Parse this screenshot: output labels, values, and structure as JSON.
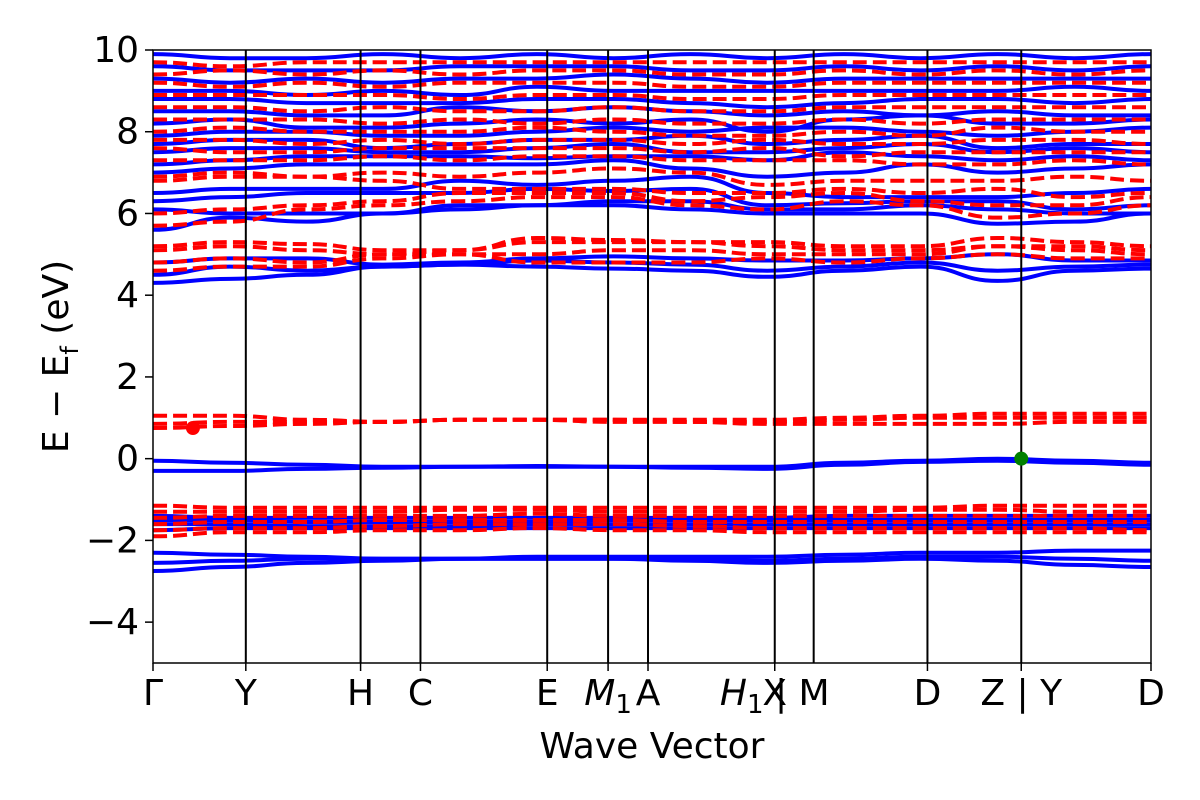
{
  "chart_data": {
    "type": "line",
    "title": "",
    "xlabel": "Wave Vector",
    "ylabel": "E − E",
    "ylabel_subscript": "f",
    "ylabel_unit": " (eV)",
    "ylim": [
      -5,
      10
    ],
    "yticks": [
      -4,
      -2,
      0,
      2,
      4,
      6,
      8,
      10
    ],
    "ytick_labels": [
      "−4",
      "−2",
      "0",
      "2",
      "4",
      "6",
      "8",
      "10"
    ],
    "xlim": [
      0,
      100
    ],
    "grid": false,
    "legend": "none",
    "kpoints": [
      {
        "label": "Γ",
        "x": 0
      },
      {
        "label": "Y",
        "x": 9.3
      },
      {
        "label": "H",
        "x": 20.8
      },
      {
        "label": "C",
        "x": 26.8
      },
      {
        "label": "E",
        "x": 39.5
      },
      {
        "label": "M",
        "sub": "1",
        "x": 45.6,
        "italic": true
      },
      {
        "label": "A",
        "x": 49.6
      },
      {
        "label": "X",
        "x": 62.3
      },
      {
        "label": "H",
        "sub": "1",
        "x": 62.3,
        "italic": true,
        "suffix": " | M"
      },
      {
        "label": "D",
        "x": 77.6
      },
      {
        "label": "Z | Y",
        "x": 87.0
      },
      {
        "label": "D",
        "x": 100
      }
    ],
    "path_breaks": [
      66.2,
      87.0
    ],
    "series": [
      {
        "kind": "spin-up",
        "color": "#0000ff",
        "style": "solid",
        "bands": [
          [
            -2.75,
            -2.65,
            -2.55,
            -2.5,
            -2.45,
            -2.45,
            -2.45,
            -2.5,
            -2.55,
            -2.5,
            -2.45,
            -2.5,
            -2.6,
            -2.65
          ],
          [
            -2.55,
            -2.5,
            -2.45,
            -2.45,
            -2.45,
            -2.45,
            -2.45,
            -2.45,
            -2.5,
            -2.45,
            -2.4,
            -2.4,
            -2.45,
            -2.5
          ],
          [
            -2.3,
            -2.35,
            -2.4,
            -2.45,
            -2.45,
            -2.4,
            -2.4,
            -2.4,
            -2.4,
            -2.35,
            -2.3,
            -2.3,
            -2.25,
            -2.25
          ],
          [
            -1.75,
            -1.7,
            -1.7,
            -1.7,
            -1.7,
            -1.7,
            -1.7,
            -1.7,
            -1.7,
            -1.7,
            -1.7,
            -1.7,
            -1.7,
            -1.7
          ],
          [
            -1.6,
            -1.6,
            -1.65,
            -1.65,
            -1.65,
            -1.6,
            -1.6,
            -1.6,
            -1.6,
            -1.6,
            -1.6,
            -1.6,
            -1.6,
            -1.6
          ],
          [
            -1.5,
            -1.5,
            -1.55,
            -1.55,
            -1.55,
            -1.55,
            -1.5,
            -1.5,
            -1.5,
            -1.5,
            -1.5,
            -1.5,
            -1.5,
            -1.5
          ],
          [
            -1.4,
            -1.45,
            -1.45,
            -1.45,
            -1.45,
            -1.45,
            -1.45,
            -1.45,
            -1.45,
            -1.4,
            -1.4,
            -1.4,
            -1.4,
            -1.4
          ],
          [
            -0.3,
            -0.3,
            -0.25,
            -0.22,
            -0.2,
            -0.2,
            -0.2,
            -0.22,
            -0.25,
            -0.15,
            -0.08,
            -0.05,
            -0.1,
            -0.15
          ],
          [
            -0.05,
            -0.1,
            -0.15,
            -0.2,
            -0.2,
            -0.18,
            -0.2,
            -0.2,
            -0.2,
            -0.1,
            -0.05,
            0.0,
            -0.05,
            -0.1
          ],
          [
            4.3,
            4.4,
            4.5,
            4.7,
            4.75,
            4.7,
            4.65,
            4.6,
            4.45,
            4.6,
            4.7,
            4.35,
            4.6,
            4.65
          ],
          [
            4.5,
            4.7,
            4.6,
            4.7,
            4.75,
            4.85,
            4.8,
            4.75,
            4.6,
            4.7,
            4.8,
            4.6,
            4.7,
            4.75
          ],
          [
            4.8,
            4.9,
            4.9,
            4.75,
            4.8,
            4.9,
            4.95,
            4.9,
            4.85,
            4.85,
            4.9,
            5.0,
            4.85,
            4.85
          ],
          [
            5.6,
            5.9,
            5.8,
            6.0,
            6.1,
            6.2,
            6.2,
            6.1,
            6.0,
            6.0,
            6.0,
            5.75,
            5.8,
            6.0
          ],
          [
            6.1,
            6.0,
            6.0,
            6.0,
            6.2,
            6.2,
            6.3,
            6.3,
            6.1,
            6.1,
            6.2,
            6.1,
            6.0,
            6.0
          ],
          [
            6.3,
            6.4,
            6.5,
            6.5,
            6.5,
            6.6,
            6.55,
            6.6,
            6.2,
            6.25,
            6.3,
            6.3,
            6.1,
            6.2
          ],
          [
            6.5,
            6.6,
            6.6,
            6.6,
            6.8,
            6.7,
            6.8,
            6.9,
            6.5,
            6.4,
            6.4,
            6.4,
            6.5,
            6.6
          ],
          [
            7.0,
            7.1,
            7.2,
            7.2,
            7.2,
            7.2,
            7.3,
            7.1,
            6.9,
            7.0,
            7.2,
            7.0,
            7.1,
            7.2
          ],
          [
            7.2,
            7.3,
            7.4,
            7.4,
            7.4,
            7.35,
            7.4,
            7.4,
            7.3,
            7.5,
            7.4,
            7.3,
            7.4,
            7.3
          ],
          [
            7.5,
            7.6,
            7.6,
            7.5,
            7.5,
            7.6,
            7.7,
            7.5,
            7.5,
            7.6,
            7.7,
            7.5,
            7.6,
            7.5
          ],
          [
            7.7,
            7.8,
            7.8,
            7.6,
            7.7,
            7.8,
            7.8,
            7.9,
            7.7,
            7.8,
            7.9,
            7.6,
            7.7,
            7.7
          ],
          [
            7.9,
            8.0,
            8.0,
            7.9,
            7.9,
            8.0,
            8.1,
            8.0,
            8.1,
            8.1,
            8.0,
            7.9,
            8.0,
            8.1
          ],
          [
            8.2,
            8.3,
            8.1,
            8.1,
            8.2,
            8.3,
            8.2,
            8.3,
            8.0,
            8.3,
            8.4,
            8.2,
            8.2,
            8.3
          ],
          [
            8.5,
            8.5,
            8.4,
            8.4,
            8.6,
            8.5,
            8.6,
            8.5,
            8.4,
            8.5,
            8.4,
            8.5,
            8.4,
            8.4
          ],
          [
            8.8,
            8.8,
            8.7,
            8.7,
            8.7,
            8.8,
            8.8,
            8.7,
            8.6,
            8.7,
            8.8,
            8.8,
            8.7,
            8.8
          ],
          [
            9.0,
            9.0,
            8.9,
            9.0,
            8.9,
            9.1,
            9.0,
            9.0,
            9.0,
            9.0,
            9.0,
            9.0,
            9.1,
            9.0
          ],
          [
            9.3,
            9.2,
            9.3,
            9.2,
            9.3,
            9.3,
            9.4,
            9.3,
            9.2,
            9.3,
            9.3,
            9.3,
            9.3,
            9.3
          ],
          [
            9.6,
            9.5,
            9.5,
            9.5,
            9.6,
            9.6,
            9.6,
            9.5,
            9.5,
            9.6,
            9.5,
            9.6,
            9.5,
            9.6
          ],
          [
            9.9,
            9.8,
            9.8,
            9.9,
            9.8,
            9.9,
            9.8,
            9.9,
            9.8,
            9.9,
            9.8,
            9.9,
            9.8,
            9.9
          ]
        ]
      },
      {
        "kind": "spin-down",
        "color": "#ff0000",
        "style": "dashed",
        "bands": [
          [
            -1.9,
            -1.8,
            -1.8,
            -1.75,
            -1.75,
            -1.7,
            -1.75,
            -1.75,
            -1.8,
            -1.8,
            -1.8,
            -1.8,
            -1.8,
            -1.8
          ],
          [
            -1.75,
            -1.7,
            -1.7,
            -1.65,
            -1.6,
            -1.6,
            -1.6,
            -1.65,
            -1.7,
            -1.7,
            -1.7,
            -1.7,
            -1.7,
            -1.75
          ],
          [
            -1.6,
            -1.55,
            -1.55,
            -1.5,
            -1.5,
            -1.5,
            -1.5,
            -1.55,
            -1.55,
            -1.55,
            -1.55,
            -1.55,
            -1.55,
            -1.55
          ],
          [
            -1.45,
            -1.4,
            -1.4,
            -1.4,
            -1.4,
            -1.35,
            -1.4,
            -1.4,
            -1.4,
            -1.4,
            -1.4,
            -1.4,
            -1.4,
            -1.4
          ],
          [
            -1.3,
            -1.3,
            -1.3,
            -1.3,
            -1.25,
            -1.25,
            -1.3,
            -1.3,
            -1.3,
            -1.3,
            -1.25,
            -1.25,
            -1.3,
            -1.3
          ],
          [
            -1.15,
            -1.2,
            -1.2,
            -1.2,
            -1.2,
            -1.2,
            -1.2,
            -1.2,
            -1.2,
            -1.2,
            -1.2,
            -1.15,
            -1.15,
            -1.15
          ],
          [
            0.75,
            0.8,
            0.85,
            0.9,
            0.95,
            0.95,
            0.9,
            0.9,
            0.85,
            0.85,
            0.85,
            0.85,
            0.9,
            0.9
          ],
          [
            0.85,
            0.9,
            0.9,
            0.9,
            0.95,
            0.95,
            0.95,
            0.9,
            0.9,
            0.95,
            1.0,
            1.0,
            1.0,
            1.0
          ],
          [
            1.05,
            1.05,
            0.95,
            0.9,
            0.95,
            0.95,
            0.95,
            0.95,
            0.95,
            1.0,
            1.05,
            1.1,
            1.1,
            1.1
          ],
          [
            4.6,
            4.7,
            4.7,
            4.9,
            5.0,
            4.8,
            4.8,
            4.8,
            4.9,
            4.8,
            4.9,
            5.0,
            4.9,
            4.9
          ],
          [
            4.8,
            4.9,
            4.8,
            5.0,
            5.0,
            5.0,
            5.1,
            5.1,
            5.0,
            5.0,
            5.0,
            5.2,
            5.1,
            5.0
          ],
          [
            5.1,
            5.2,
            5.1,
            5.0,
            5.1,
            5.3,
            5.3,
            5.3,
            5.2,
            5.1,
            5.1,
            5.2,
            5.2,
            5.1
          ],
          [
            5.2,
            5.3,
            5.25,
            5.1,
            5.1,
            5.4,
            5.35,
            5.3,
            5.3,
            5.2,
            5.2,
            5.4,
            5.3,
            5.2
          ],
          [
            5.7,
            5.8,
            6.1,
            6.2,
            6.3,
            6.4,
            6.4,
            6.2,
            6.1,
            6.3,
            6.2,
            5.9,
            6.0,
            6.2
          ],
          [
            6.0,
            6.1,
            6.2,
            6.3,
            6.5,
            6.5,
            6.5,
            6.3,
            6.4,
            6.5,
            6.3,
            6.2,
            6.2,
            6.4
          ],
          [
            6.8,
            6.9,
            6.9,
            6.8,
            6.6,
            6.6,
            6.6,
            6.5,
            6.5,
            6.6,
            6.5,
            6.6,
            6.4,
            6.5
          ],
          [
            6.9,
            7.0,
            6.9,
            7.0,
            6.9,
            7.0,
            7.1,
            7.0,
            6.7,
            6.8,
            6.8,
            6.8,
            6.9,
            6.8
          ],
          [
            7.3,
            7.3,
            7.3,
            7.4,
            7.3,
            7.4,
            7.4,
            7.3,
            7.3,
            7.3,
            7.2,
            7.2,
            7.3,
            7.2
          ],
          [
            7.6,
            7.5,
            7.5,
            7.6,
            7.6,
            7.6,
            7.6,
            7.5,
            7.6,
            7.4,
            7.5,
            7.5,
            7.5,
            7.5
          ],
          [
            7.8,
            7.8,
            7.7,
            7.8,
            7.7,
            7.8,
            7.8,
            7.7,
            7.8,
            7.7,
            7.7,
            7.8,
            7.8,
            7.7
          ],
          [
            8.0,
            8.1,
            8.0,
            8.0,
            8.0,
            8.1,
            8.0,
            7.9,
            7.9,
            8.0,
            7.9,
            8.1,
            8.0,
            8.0
          ],
          [
            8.3,
            8.3,
            8.3,
            8.2,
            8.3,
            8.2,
            8.3,
            8.2,
            8.2,
            8.3,
            8.2,
            8.3,
            8.3,
            8.3
          ],
          [
            8.6,
            8.6,
            8.5,
            8.6,
            8.5,
            8.5,
            8.6,
            8.5,
            8.5,
            8.6,
            8.6,
            8.6,
            8.6,
            8.6
          ],
          [
            8.9,
            8.9,
            8.9,
            8.9,
            8.8,
            8.9,
            8.9,
            8.8,
            8.8,
            8.9,
            8.9,
            8.9,
            8.9,
            8.9
          ],
          [
            9.2,
            9.1,
            9.2,
            9.1,
            9.2,
            9.2,
            9.2,
            9.1,
            9.1,
            9.2,
            9.2,
            9.2,
            9.2,
            9.2
          ],
          [
            9.4,
            9.5,
            9.4,
            9.5,
            9.4,
            9.5,
            9.5,
            9.4,
            9.4,
            9.5,
            9.4,
            9.5,
            9.4,
            9.5
          ],
          [
            9.7,
            9.6,
            9.7,
            9.7,
            9.7,
            9.7,
            9.7,
            9.7,
            9.7,
            9.7,
            9.7,
            9.7,
            9.7,
            9.7
          ]
        ]
      }
    ],
    "markers": [
      {
        "kind": "spin-down-point",
        "x": 4.0,
        "y": 0.75,
        "color": "#ff0000"
      },
      {
        "kind": "spin-up-point",
        "x": 87.0,
        "y": 0.0,
        "color": "#008000"
      }
    ]
  }
}
